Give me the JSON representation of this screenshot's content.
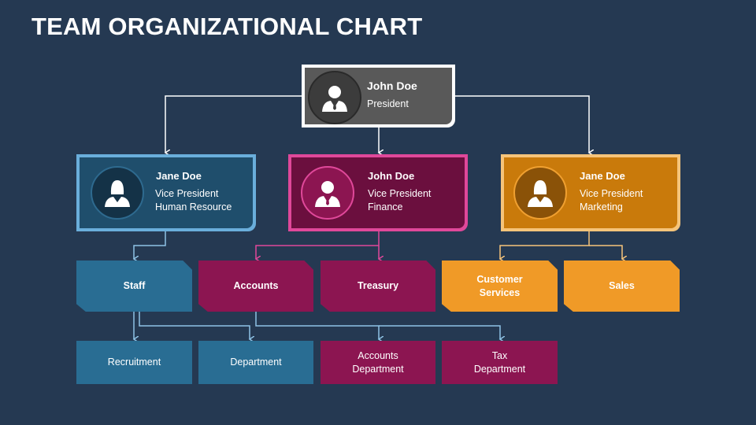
{
  "title": "TEAM ORGANIZATIONAL CHART",
  "colors": {
    "background": "#253952",
    "hr": "#296d93",
    "finance": "#8c1551",
    "marketing": "#f09a27",
    "president": "#595959"
  },
  "president": {
    "name": "John Doe",
    "role": "President",
    "icon": "man-avatar-icon"
  },
  "vps": [
    {
      "name": "Jane Doe",
      "role": "Vice President",
      "dept": "Human Resource",
      "icon": "woman-avatar-icon"
    },
    {
      "name": "John Doe",
      "role": "Vice President",
      "dept": "Finance",
      "icon": "man-avatar-icon"
    },
    {
      "name": "Jane Doe",
      "role": "Vice President",
      "dept": "Marketing",
      "icon": "woman-avatar-icon"
    }
  ],
  "departments": [
    "Staff",
    "Accounts",
    "Treasury",
    "Customer Services",
    "Sales"
  ],
  "subdepartments": [
    "Recruitment",
    "Department",
    "Accounts Department",
    "Tax Department"
  ]
}
